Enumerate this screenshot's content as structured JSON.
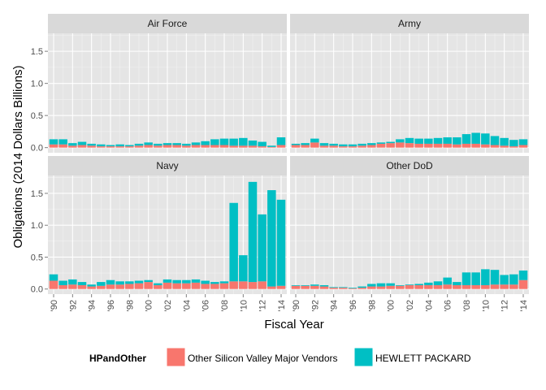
{
  "chart_data": {
    "type": "bar",
    "stacked": true,
    "facet_wrap": "2x2",
    "xlabel": "Fiscal Year",
    "ylabel": "Obligations (2014 Dollars Billions)",
    "ylim": [
      -0.08,
      1.78
    ],
    "yticks": [
      0.0,
      0.5,
      1.0,
      1.5
    ],
    "ytick_labels": [
      "0.0",
      "0.5",
      "1.0",
      "1.5"
    ],
    "xticks": [
      1990,
      1992,
      1994,
      1996,
      1998,
      2000,
      2002,
      2004,
      2006,
      2008,
      2010,
      2012,
      2014
    ],
    "xtick_labels": [
      "'90",
      "'92",
      "'94",
      "'96",
      "'98",
      "'00",
      "'02",
      "'04",
      "'06",
      "'08",
      "'10",
      "'12",
      "'14"
    ],
    "years": [
      1990,
      1991,
      1992,
      1993,
      1994,
      1995,
      1996,
      1997,
      1998,
      1999,
      2000,
      2001,
      2002,
      2003,
      2004,
      2005,
      2006,
      2007,
      2008,
      2009,
      2010,
      2011,
      2012,
      2013,
      2014
    ],
    "grid": true,
    "background": "#e5e5e5",
    "legend": {
      "title": "HPandOther",
      "position": "bottom",
      "entries": [
        {
          "label": "Other Silicon Valley Major Vendors",
          "color": "#f8766d"
        },
        {
          "label": "HEWLETT PACKARD",
          "color": "#00bfc4"
        }
      ]
    },
    "panels": [
      {
        "name": "Air Force",
        "series": [
          {
            "name": "Other Silicon Valley Major Vendors",
            "values": [
              0.05,
              0.05,
              0.03,
              0.04,
              0.03,
              0.02,
              0.02,
              0.02,
              0.02,
              0.03,
              0.04,
              0.03,
              0.04,
              0.04,
              0.03,
              0.04,
              0.04,
              0.04,
              0.04,
              0.03,
              0.03,
              0.03,
              0.02,
              0.01,
              0.04
            ]
          },
          {
            "name": "HEWLETT PACKARD",
            "values": [
              0.08,
              0.08,
              0.04,
              0.05,
              0.03,
              0.03,
              0.02,
              0.03,
              0.02,
              0.03,
              0.04,
              0.03,
              0.03,
              0.03,
              0.03,
              0.04,
              0.06,
              0.09,
              0.1,
              0.11,
              0.12,
              0.08,
              0.07,
              0.02,
              0.12
            ]
          }
        ]
      },
      {
        "name": "Army",
        "series": [
          {
            "name": "Other Silicon Valley Major Vendors",
            "values": [
              0.04,
              0.04,
              0.08,
              0.03,
              0.03,
              0.02,
              0.02,
              0.03,
              0.04,
              0.06,
              0.07,
              0.08,
              0.07,
              0.06,
              0.06,
              0.06,
              0.06,
              0.05,
              0.06,
              0.06,
              0.05,
              0.04,
              0.03,
              0.02,
              0.04
            ]
          },
          {
            "name": "HEWLETT PACKARD",
            "values": [
              0.02,
              0.03,
              0.06,
              0.04,
              0.03,
              0.03,
              0.03,
              0.03,
              0.03,
              0.02,
              0.02,
              0.05,
              0.08,
              0.08,
              0.08,
              0.09,
              0.1,
              0.11,
              0.15,
              0.17,
              0.17,
              0.14,
              0.12,
              0.1,
              0.09
            ]
          }
        ]
      },
      {
        "name": "Navy",
        "series": [
          {
            "name": "Other Silicon Valley Major Vendors",
            "values": [
              0.13,
              0.06,
              0.07,
              0.06,
              0.04,
              0.05,
              0.07,
              0.07,
              0.08,
              0.09,
              0.11,
              0.06,
              0.1,
              0.09,
              0.09,
              0.1,
              0.08,
              0.08,
              0.09,
              0.12,
              0.12,
              0.11,
              0.12,
              0.04,
              0.05
            ]
          },
          {
            "name": "HEWLETT PACKARD",
            "values": [
              0.1,
              0.07,
              0.08,
              0.05,
              0.03,
              0.06,
              0.07,
              0.05,
              0.04,
              0.04,
              0.03,
              0.03,
              0.05,
              0.05,
              0.05,
              0.05,
              0.05,
              0.03,
              0.03,
              1.23,
              0.41,
              1.57,
              1.05,
              1.51,
              1.35
            ]
          }
        ]
      },
      {
        "name": "Other DoD",
        "series": [
          {
            "name": "Other Silicon Valley Major Vendors",
            "values": [
              0.05,
              0.05,
              0.05,
              0.04,
              0.02,
              0.02,
              0.01,
              0.02,
              0.04,
              0.04,
              0.05,
              0.05,
              0.06,
              0.06,
              0.06,
              0.06,
              0.07,
              0.06,
              0.06,
              0.06,
              0.06,
              0.07,
              0.07,
              0.07,
              0.14
            ]
          },
          {
            "name": "HEWLETT PACKARD",
            "values": [
              0.01,
              0.01,
              0.02,
              0.02,
              0.01,
              0.01,
              0.01,
              0.02,
              0.04,
              0.05,
              0.04,
              0.01,
              0.01,
              0.02,
              0.04,
              0.06,
              0.11,
              0.05,
              0.2,
              0.2,
              0.25,
              0.23,
              0.15,
              0.16,
              0.15
            ]
          }
        ]
      }
    ]
  }
}
